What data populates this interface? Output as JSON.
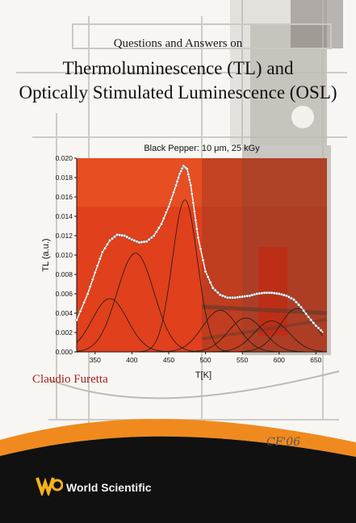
{
  "cover": {
    "subtitle_line": "Questions and Answers on",
    "title_line_1": "Thermoluminescence (TL) and",
    "title_line_2": "Optically Stimulated Luminescence (OSL)",
    "author": "Claudio Furetta",
    "signature": "CF'06",
    "publisher": "World Scientific",
    "colors": {
      "plot_red": "#e0401c",
      "accent_orange": "#f08a1e",
      "footer_black": "#111111",
      "author_red": "#a3231c"
    }
  },
  "chart_data": {
    "type": "line",
    "title": "Black Pepper:  10    μm, 25 kGy",
    "xlabel": "T[K]",
    "ylabel": "TL (a.u.)",
    "xlim": [
      325,
      665
    ],
    "ylim": [
      0,
      0.02
    ],
    "x_ticks": [
      "350",
      "400",
      "450",
      "500",
      "550",
      "600",
      "650"
    ],
    "y_ticks": [
      "0.000",
      "0.002",
      "0.004",
      "0.006",
      "0.008",
      "0.010",
      "0.012",
      "0.014",
      "0.016",
      "0.018",
      "0.020"
    ],
    "total_curve": {
      "x": [
        325,
        340,
        350,
        360,
        370,
        380,
        390,
        400,
        410,
        420,
        430,
        440,
        450,
        460,
        465,
        470,
        475,
        480,
        485,
        490,
        500,
        510,
        520,
        530,
        540,
        550,
        560,
        570,
        580,
        590,
        600,
        610,
        620,
        630,
        640,
        650,
        660
      ],
      "y": [
        0.0033,
        0.006,
        0.0082,
        0.0103,
        0.0115,
        0.0121,
        0.012,
        0.0116,
        0.0113,
        0.0114,
        0.012,
        0.0132,
        0.015,
        0.0172,
        0.0184,
        0.0192,
        0.0189,
        0.0172,
        0.0145,
        0.0118,
        0.0083,
        0.0066,
        0.0059,
        0.0056,
        0.0056,
        0.0057,
        0.0058,
        0.006,
        0.0061,
        0.0061,
        0.006,
        0.0058,
        0.0054,
        0.0046,
        0.0036,
        0.0027,
        0.002
      ]
    },
    "component_peaks": [
      {
        "center": 370,
        "height": 0.0055
      },
      {
        "center": 405,
        "height": 0.0102
      },
      {
        "center": 472,
        "height": 0.0157
      },
      {
        "center": 520,
        "height": 0.0043
      },
      {
        "center": 555,
        "height": 0.0035
      },
      {
        "center": 590,
        "height": 0.0032
      },
      {
        "center": 625,
        "height": 0.0045
      }
    ]
  }
}
